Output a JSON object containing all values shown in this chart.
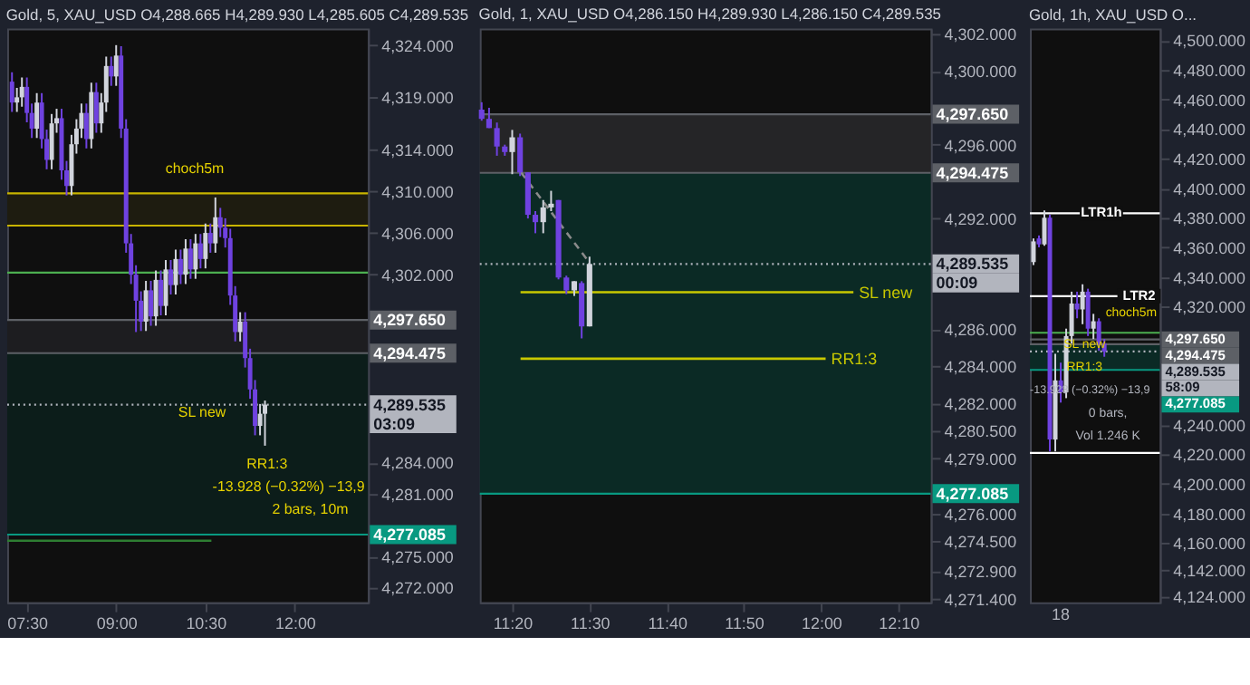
{
  "chart_data": [
    {
      "type": "candlestick",
      "title": "Gold, 5, XAU_USD O4,288.665 H4,289.930 L4,285.605 C4,289.535",
      "colors": [
        "#6f42e0",
        "#d1d4dc",
        "#d1d4dc",
        "#6f42e0",
        "#6f42e0",
        "#d1d4dc",
        "#6f42e0",
        "#6f42e0",
        "#d1d4dc",
        "#d1d4dc",
        "#6f42e0",
        "#6f42e0",
        "#d1d4dc",
        "#d1d4dc",
        "#d1d4dc",
        "#6f42e0",
        "#d1d4dc",
        "#6f42e0",
        "#d1d4dc",
        "#d1d4dc",
        "#6f42e0",
        "#d1d4dc",
        "#6f42e0",
        "#6f42e0",
        "#6f42e0",
        "#6f42e0",
        "#6f42e0",
        "#d1d4dc",
        "#6f42e0",
        "#d1d4dc",
        "#6f42e0",
        "#d1d4dc",
        "#6f42e0",
        "#d1d4dc",
        "#6f42e0",
        "#d1d4dc",
        "#6f42e0",
        "#d1d4dc",
        "#6f42e0",
        "#d1d4dc",
        "#6f42e0",
        "#d1d4dc",
        "#6f42e0",
        "#6f42e0",
        "#6f42e0",
        "#6f42e0",
        "#d1d4dc",
        "#6f42e0",
        "#6f42e0",
        "#6f42e0",
        "#d1d4dc",
        "#d1d4dc"
      ],
      "x": [
        7.25,
        7.333,
        7.417,
        7.5,
        7.583,
        7.667,
        7.75,
        7.833,
        7.917,
        8,
        8.083,
        8.167,
        8.25,
        8.333,
        8.417,
        8.5,
        8.583,
        8.667,
        8.75,
        8.833,
        8.917,
        9,
        9.083,
        9.167,
        9.25,
        9.333,
        9.417,
        9.5,
        9.583,
        9.667,
        9.75,
        9.833,
        9.917,
        10,
        10.083,
        10.167,
        10.25,
        10.333,
        10.417,
        10.5,
        10.583,
        10.667,
        10.75,
        10.833,
        10.917,
        11,
        11.083,
        11.167,
        11.25,
        11.333,
        11.417,
        11.5
      ],
      "ohlc": [
        [
          4320.5,
          4321.4,
          4317.6,
          4318.5
        ],
        [
          4318.5,
          4319.9,
          4317.6,
          4319.0
        ],
        [
          4319.0,
          4320.9,
          4318.1,
          4320.0
        ],
        [
          4320.0,
          4320.9,
          4316.6,
          4317.5
        ],
        [
          4317.5,
          4318.4,
          4315.1,
          4316.0
        ],
        [
          4316.0,
          4319.4,
          4315.1,
          4318.5
        ],
        [
          4318.5,
          4319.4,
          4314.1,
          4315.0
        ],
        [
          4315.0,
          4315.9,
          4312.1,
          4313.0
        ],
        [
          4313.0,
          4317.4,
          4312.1,
          4316.5
        ],
        [
          4316.5,
          4317.9,
          4315.6,
          4317.0
        ],
        [
          4317.0,
          4317.9,
          4311.1,
          4312.0
        ],
        [
          4312.0,
          4312.9,
          4309.6,
          4310.5
        ],
        [
          4310.5,
          4315.4,
          4309.6,
          4314.5
        ],
        [
          4314.5,
          4316.9,
          4313.6,
          4316.0
        ],
        [
          4316.0,
          4318.4,
          4315.1,
          4317.5
        ],
        [
          4317.5,
          4318.4,
          4314.1,
          4315.0
        ],
        [
          4315.0,
          4320.4,
          4314.1,
          4319.5
        ],
        [
          4319.5,
          4320.4,
          4315.6,
          4316.5
        ],
        [
          4316.5,
          4319.4,
          4315.6,
          4318.5
        ],
        [
          4318.5,
          4322.9,
          4317.6,
          4322.0
        ],
        [
          4322.0,
          4322.9,
          4320.1,
          4321.0
        ],
        [
          4321.0,
          4324.0,
          4320.1,
          4323.0
        ],
        [
          4323.0,
          4323.9,
          4315.1,
          4316.0
        ],
        [
          4316.0,
          4316.9,
          4304.1,
          4305.0
        ],
        [
          4305.0,
          4305.9,
          4301.1,
          4302.0
        ],
        [
          4302.0,
          4302.9,
          4296.5,
          4299.5
        ],
        [
          4299.5,
          4300.4,
          4296.6,
          4297.5
        ],
        [
          4297.5,
          4301.4,
          4296.6,
          4300.5
        ],
        [
          4300.5,
          4301.4,
          4297.1,
          4298.0
        ],
        [
          4298.0,
          4302.4,
          4297.1,
          4301.5
        ],
        [
          4301.5,
          4302.4,
          4298.1,
          4299.0
        ],
        [
          4299.0,
          4303.4,
          4298.1,
          4302.5
        ],
        [
          4302.5,
          4303.4,
          4300.1,
          4301.0
        ],
        [
          4301.0,
          4304.4,
          4300.1,
          4303.5
        ],
        [
          4303.5,
          4304.4,
          4301.1,
          4302.0
        ],
        [
          4302.0,
          4305.4,
          4301.1,
          4304.5
        ],
        [
          4304.5,
          4305.4,
          4301.6,
          4302.5
        ],
        [
          4302.5,
          4305.9,
          4301.6,
          4305.0
        ],
        [
          4305.0,
          4305.9,
          4302.6,
          4303.5
        ],
        [
          4303.5,
          4306.9,
          4302.6,
          4306.0
        ],
        [
          4306.0,
          4306.9,
          4304.1,
          4305.0
        ],
        [
          4305.0,
          4309.4,
          4304.1,
          4307.5
        ],
        [
          4307.5,
          4308.4,
          4305.6,
          4306.5
        ],
        [
          4306.5,
          4307.4,
          4304.6,
          4305.5
        ],
        [
          4305.5,
          4306.4,
          4299.1,
          4300.0
        ],
        [
          4300.0,
          4300.9,
          4295.6,
          4296.5
        ],
        [
          4296.5,
          4298.4,
          4295.6,
          4297.5
        ],
        [
          4297.5,
          4298.4,
          4293.1,
          4294.0
        ],
        [
          4294.0,
          4294.9,
          4290.1,
          4291.0
        ],
        [
          4291.0,
          4291.9,
          4286.6,
          4287.5
        ],
        [
          4287.5,
          4289.6,
          4286.6,
          4288.665
        ],
        [
          4288.665,
          4289.93,
          4285.605,
          4289.535
        ]
      ],
      "series": [
        {
          "type": "line",
          "x": [
            7.17,
            10.6
          ],
          "values": [
            4276.5,
            4276.5
          ],
          "color": "#2e7d32",
          "line_style": "solid"
        }
      ],
      "xlim": [
        7.17,
        13.23
      ],
      "xticks": [
        {
          "value": 7.5,
          "label": "07:30"
        },
        {
          "value": 9,
          "label": "09:00"
        },
        {
          "value": 10.5,
          "label": "10:30"
        },
        {
          "value": 12,
          "label": "12:00"
        }
      ],
      "ylim": [
        4270.6,
        4325.6
      ],
      "yticks": [
        {
          "value": 4324,
          "label": "4,324.000"
        },
        {
          "value": 4319,
          "label": "4,319.000"
        },
        {
          "value": 4314,
          "label": "4,314.000"
        },
        {
          "value": 4310,
          "label": "4,310.000"
        },
        {
          "value": 4306,
          "label": "4,306.000"
        },
        {
          "value": 4302,
          "label": "4,302.000"
        },
        {
          "value": 4284,
          "label": "4,284.000"
        },
        {
          "value": 4281,
          "label": "4,281.000"
        },
        {
          "value": 4275,
          "label": "4,275.000"
        },
        {
          "value": 4272,
          "label": "4,272.000"
        }
      ],
      "bands": [
        {
          "axis": "y",
          "from": 4306.7,
          "to": 4309.8,
          "color": "#1e1c10",
          "label": null
        },
        {
          "axis": "y",
          "from": 4294.475,
          "to": 4297.65,
          "color": "#1d1d20",
          "label": null
        },
        {
          "axis": "y",
          "from": 4277.085,
          "to": 4294.475,
          "color": "#0c1d1a",
          "label": null
        }
      ],
      "ref_lines": [
        {
          "axis": "y",
          "value": 4309.8,
          "color": "#c8b400",
          "line_style": "solid",
          "label": null
        },
        {
          "axis": "y",
          "value": 4306.7,
          "color": "#c8b400",
          "line_style": "solid",
          "label": null
        },
        {
          "axis": "y",
          "value": 4302.2,
          "color": "#4caf50",
          "line_style": "solid",
          "label": null
        },
        {
          "axis": "y",
          "value": 4289.535,
          "color": "#b2b5be",
          "line_style": "dotted",
          "label": "4,289.535"
        },
        {
          "axis": "y",
          "value": 4297.65,
          "color": "#5d6066",
          "line_style": "solid",
          "label": "4,297.650"
        },
        {
          "axis": "y",
          "value": 4294.475,
          "color": "#5d6066",
          "line_style": "solid",
          "label": "4,294.475"
        },
        {
          "axis": "y",
          "value": 4277.085,
          "color": "#089981",
          "line_style": "solid",
          "label": "4,277.085"
        }
      ],
      "annotations": [
        "choch5m",
        "SL new",
        "RR1:3",
        "-13.928 (−0.32%) −13,9",
        "2 bars, 10m",
        "03:09"
      ]
    },
    {
      "type": "candlestick",
      "title": "Gold, 1, XAU_USD O4,286.150 H4,289.930 L4,286.150 C4,289.535",
      "colors": [
        "#6f42e0",
        "#6f42e0",
        "#6f42e0",
        "#6f42e0",
        "#d1d4dc",
        "#6f42e0",
        "#6f42e0",
        "#6f42e0",
        "#d1d4dc",
        "#d1d4dc",
        "#6f42e0",
        "#6f42e0",
        "#d1d4dc",
        "#6f42e0",
        "#d1d4dc"
      ],
      "x": [
        11.267,
        11.283,
        11.3,
        11.317,
        11.333,
        11.35,
        11.367,
        11.383,
        11.4,
        11.417,
        11.433,
        11.45,
        11.467,
        11.483,
        11.5
      ],
      "ohlc": [
        [
          4297.9,
          4298.3,
          4297.3,
          4297.4
        ],
        [
          4297.4,
          4298.0,
          4296.9,
          4296.9
        ],
        [
          4296.9,
          4297.2,
          4295.4,
          4295.9
        ],
        [
          4295.9,
          4296.0,
          4295.4,
          4295.6
        ],
        [
          4295.6,
          4296.8,
          4294.4,
          4296.4
        ],
        [
          4296.4,
          4296.6,
          4294.3,
          4294.5
        ],
        [
          4294.5,
          4294.5,
          4292.0,
          4292.2
        ],
        [
          4292.2,
          4292.4,
          4291.2,
          4291.8
        ],
        [
          4291.8,
          4293.0,
          4291.2,
          4292.6
        ],
        [
          4292.6,
          4293.5,
          4292.4,
          4292.8
        ],
        [
          4293.0,
          4293.0,
          4288.7,
          4288.8
        ],
        [
          4288.8,
          4288.9,
          4287.9,
          4288.1
        ],
        [
          4288.1,
          4288.6,
          4287.8,
          4288.6
        ],
        [
          4288.5,
          4288.6,
          4285.5,
          4286.15
        ],
        [
          4286.15,
          4289.93,
          4286.15,
          4289.535
        ]
      ],
      "series": [
        {
          "type": "line",
          "x": [
            11.352,
            11.5
          ],
          "values": [
            4294.5,
            4289.6
          ],
          "color": "#8a8a8a",
          "line_style": "dashed"
        },
        {
          "type": "line",
          "name": "SL new",
          "x": [
            11.351,
            12.07
          ],
          "values": [
            4288.0,
            4288.0
          ],
          "color": "#c8c800",
          "line_style": "solid"
        },
        {
          "type": "line",
          "name": "RR1:3",
          "x": [
            11.351,
            12.01
          ],
          "values": [
            4284.4,
            4284.4
          ],
          "color": "#c8c800",
          "line_style": "solid"
        }
      ],
      "xlim": [
        11.263,
        12.237
      ],
      "xticks": [
        {
          "value": 11.333,
          "label": "11:20"
        },
        {
          "value": 11.5,
          "label": "11:30"
        },
        {
          "value": 11.667,
          "label": "11:40"
        },
        {
          "value": 11.833,
          "label": "11:50"
        },
        {
          "value": 12,
          "label": "12:00"
        },
        {
          "value": 12.167,
          "label": "12:10"
        }
      ],
      "ylim": [
        4271.2,
        4302.3
      ],
      "yticks": [
        {
          "value": 4302,
          "label": "4,302.000"
        },
        {
          "value": 4300,
          "label": "4,300.000"
        },
        {
          "value": 4296,
          "label": "4,296.000"
        },
        {
          "value": 4292,
          "label": "4,292.000"
        },
        {
          "value": 4286,
          "label": "4,286.000"
        },
        {
          "value": 4284,
          "label": "4,284.000"
        },
        {
          "value": 4282,
          "label": "4,282.000"
        },
        {
          "value": 4280.5,
          "label": "4,280.500"
        },
        {
          "value": 4279,
          "label": "4,279.000"
        },
        {
          "value": 4276,
          "label": "4,276.000"
        },
        {
          "value": 4274.5,
          "label": "4,274.500"
        },
        {
          "value": 4272.9,
          "label": "4,272.900"
        },
        {
          "value": 4271.4,
          "label": "4,271.400"
        }
      ],
      "bands": [
        {
          "axis": "y",
          "from": 4294.475,
          "to": 4297.65,
          "color": "#252527",
          "label": null
        },
        {
          "axis": "y",
          "from": 4277.085,
          "to": 4294.475,
          "color": "#0b2a25",
          "label": null
        }
      ],
      "ref_lines": [
        {
          "axis": "y",
          "value": 4289.535,
          "color": "#b2b5be",
          "line_style": "dotted",
          "label": "4,289.535"
        },
        {
          "axis": "y",
          "value": 4297.65,
          "color": "#5d6066",
          "line_style": "solid",
          "label": "4,297.650"
        },
        {
          "axis": "y",
          "value": 4294.475,
          "color": "#5d6066",
          "line_style": "solid",
          "label": "4,294.475"
        },
        {
          "axis": "y",
          "value": 4277.085,
          "color": "#089981",
          "line_style": "solid",
          "label": "4,277.085"
        }
      ],
      "annotations": [
        "00:09"
      ]
    },
    {
      "type": "candlestick",
      "title": "Gold, 1h, XAU_USD O...",
      "colors": [
        "#d1d4dc",
        "#6f42e0",
        "#d1d4dc",
        "#6f42e0",
        "#d1d4dc",
        "#6f42e0",
        "#d1d4dc",
        "#d1d4dc",
        "#6f42e0",
        "#d1d4dc",
        "#6f42e0",
        "#d1d4dc",
        "#6f42e0",
        "#6f42e0"
      ],
      "categories": [
        null,
        null,
        null,
        null,
        null,
        "18",
        null,
        null,
        null,
        null,
        null,
        null,
        null,
        null
      ],
      "ohlc": [
        [
          4350,
          4366,
          4348,
          4364
        ],
        [
          4366,
          4368,
          4360,
          4362
        ],
        [
          4362,
          4385,
          4361,
          4380
        ],
        [
          4380,
          4382,
          4222,
          4230
        ],
        [
          4230,
          4288,
          4222,
          4270
        ],
        [
          4270,
          4282,
          4255,
          4262
        ],
        [
          4262,
          4305,
          4258,
          4300
        ],
        [
          4300,
          4330,
          4295,
          4322
        ],
        [
          4322,
          4330,
          4312,
          4318
        ],
        [
          4318,
          4335,
          4308,
          4330
        ],
        [
          4330,
          4332,
          4300,
          4305
        ],
        [
          4305,
          4315,
          4298,
          4310
        ],
        [
          4310,
          4312,
          4290,
          4295
        ],
        [
          4295,
          4298,
          4286,
          4289.535
        ]
      ],
      "ylim": [
        4120,
        4508
      ],
      "yticks": [
        {
          "value": 4500,
          "label": "4,500.000"
        },
        {
          "value": 4480,
          "label": "4,480.000"
        },
        {
          "value": 4460,
          "label": "4,460.000"
        },
        {
          "value": 4440,
          "label": "4,440.000"
        },
        {
          "value": 4420,
          "label": "4,420.000"
        },
        {
          "value": 4400,
          "label": "4,400.000"
        },
        {
          "value": 4380,
          "label": "4,380.000"
        },
        {
          "value": 4360,
          "label": "4,360.000"
        },
        {
          "value": 4340,
          "label": "4,340.000"
        },
        {
          "value": 4320,
          "label": "4,320.000"
        },
        {
          "value": 4240,
          "label": "4,240.000"
        },
        {
          "value": 4220,
          "label": "4,220.000"
        },
        {
          "value": 4200,
          "label": "4,200.000"
        },
        {
          "value": 4180,
          "label": "4,180.000"
        },
        {
          "value": 4160,
          "label": "4,160.000"
        },
        {
          "value": 4142,
          "label": "4,142.000"
        },
        {
          "value": 4124,
          "label": "4,124.000"
        }
      ],
      "bands": [
        {
          "axis": "y",
          "from": 4277.085,
          "to": 4294.475,
          "color": "#0b2a25",
          "label": null
        }
      ],
      "ref_lines": [
        {
          "axis": "y",
          "value": 4383,
          "color": "#ffffff",
          "line_style": "solid",
          "label": "LTR1h"
        },
        {
          "axis": "y",
          "value": 4327,
          "color": "#ffffff",
          "line_style": "solid",
          "label": "LTR2"
        },
        {
          "axis": "y",
          "value": 4221,
          "color": "#ffffff",
          "line_style": "solid",
          "label": null
        },
        {
          "axis": "y",
          "value": 4302.2,
          "color": "#4caf50",
          "line_style": "solid",
          "label": null
        },
        {
          "axis": "y",
          "value": 4289.535,
          "color": "#b2b5be",
          "line_style": "dotted",
          "label": "4,289.535"
        },
        {
          "axis": "y",
          "value": 4297.65,
          "color": "#5d6066",
          "line_style": "solid",
          "label": "4,297.650"
        },
        {
          "axis": "y",
          "value": 4294.475,
          "color": "#5d6066",
          "line_style": "solid",
          "label": "4,294.475"
        },
        {
          "axis": "y",
          "value": 4277.085,
          "color": "#089981",
          "line_style": "solid",
          "label": "4,277.085"
        }
      ],
      "annotations": [
        "choch5m",
        "SL new",
        "RR1:3",
        "-13.928 (−0.32%) −13,9",
        "0 bars,",
        "Vol 1.246 K",
        "58:09"
      ]
    }
  ]
}
